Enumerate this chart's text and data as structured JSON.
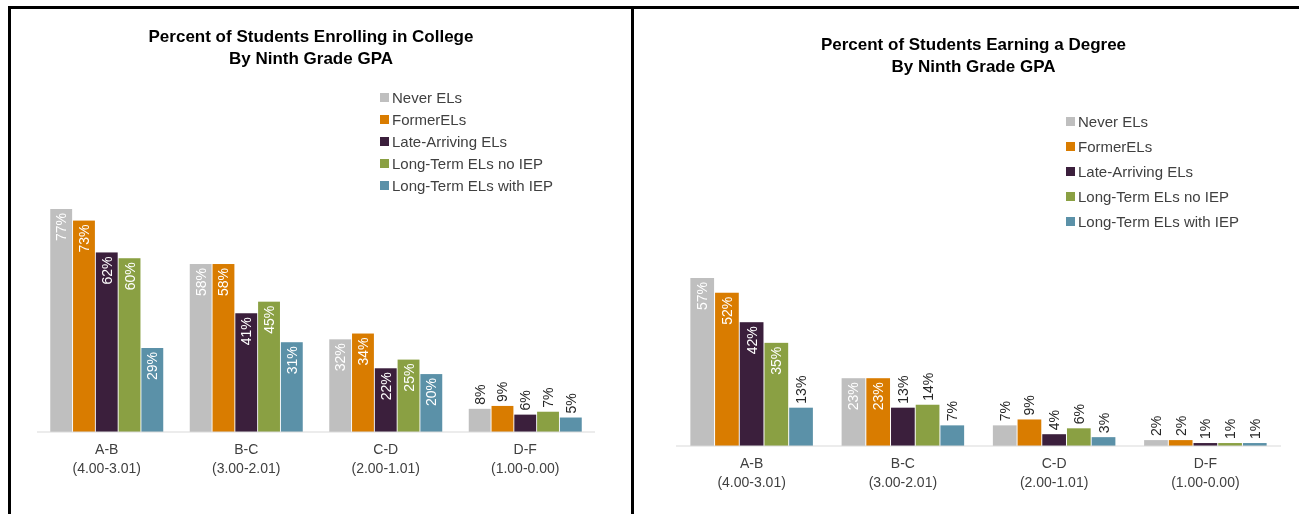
{
  "chart_data": [
    {
      "type": "bar",
      "title": "Percent of Students Enrolling in College\nBy Ninth Grade GPA",
      "categories": [
        "A-B\n(4.00-3.01)",
        "B-C\n(3.00-2.01)",
        "C-D\n(2.00-1.01)",
        "D-F\n(1.00-0.00)"
      ],
      "legend": "top right",
      "series": [
        {
          "name": "Never ELs",
          "color": "#bfbfbf",
          "values": [
            77,
            58,
            32,
            8
          ],
          "value_labels": [
            "77%",
            "58%",
            "32%",
            "8%"
          ]
        },
        {
          "name": "FormerELs",
          "color": "#d97c00",
          "values": [
            73,
            58,
            34,
            9
          ],
          "value_labels": [
            "73%",
            "58%",
            "34%",
            "9%"
          ]
        },
        {
          "name": "Late-Arriving ELs",
          "color": "#3b1f3c",
          "values": [
            62,
            41,
            22,
            6
          ],
          "value_labels": [
            "62%",
            "41%",
            "22%",
            "6%"
          ]
        },
        {
          "name": "Long-Term ELs no IEP",
          "color": "#8aa043",
          "values": [
            60,
            45,
            25,
            7
          ],
          "value_labels": [
            "60%",
            "45%",
            "25%",
            "7%"
          ]
        },
        {
          "name": "Long-Term ELs with IEP",
          "color": "#5b91a8",
          "values": [
            29,
            31,
            20,
            5
          ],
          "value_labels": [
            "29%",
            "31%",
            "20%",
            "5%"
          ]
        }
      ]
    },
    {
      "type": "bar",
      "title": "Percent of Students Earning a Degree\nBy Ninth Grade GPA",
      "categories": [
        "A-B\n(4.00-3.01)",
        "B-C\n(3.00-2.01)",
        "C-D\n(2.00-1.01)",
        "D-F\n(1.00-0.00)"
      ],
      "legend": "top right",
      "series": [
        {
          "name": "Never ELs",
          "color": "#bfbfbf",
          "values": [
            57,
            23,
            7,
            2
          ],
          "value_labels": [
            "57%",
            "23%",
            "7%",
            "2%"
          ]
        },
        {
          "name": "FormerELs",
          "color": "#d97c00",
          "values": [
            52,
            23,
            9,
            2
          ],
          "value_labels": [
            "52%",
            "23%",
            "9%",
            "2%"
          ]
        },
        {
          "name": "Late-Arriving ELs",
          "color": "#3b1f3c",
          "values": [
            42,
            13,
            4,
            1
          ],
          "value_labels": [
            "42%",
            "13%",
            "4%",
            "1%"
          ]
        },
        {
          "name": "Long-Term ELs no IEP",
          "color": "#8aa043",
          "values": [
            35,
            14,
            6,
            1
          ],
          "value_labels": [
            "35%",
            "14%",
            "6%",
            "1%"
          ]
        },
        {
          "name": "Long-Term ELs with IEP",
          "color": "#5b91a8",
          "values": [
            13,
            7,
            3,
            1
          ],
          "value_labels": [
            "13%",
            "7%",
            "3%",
            "1%"
          ]
        }
      ]
    }
  ]
}
